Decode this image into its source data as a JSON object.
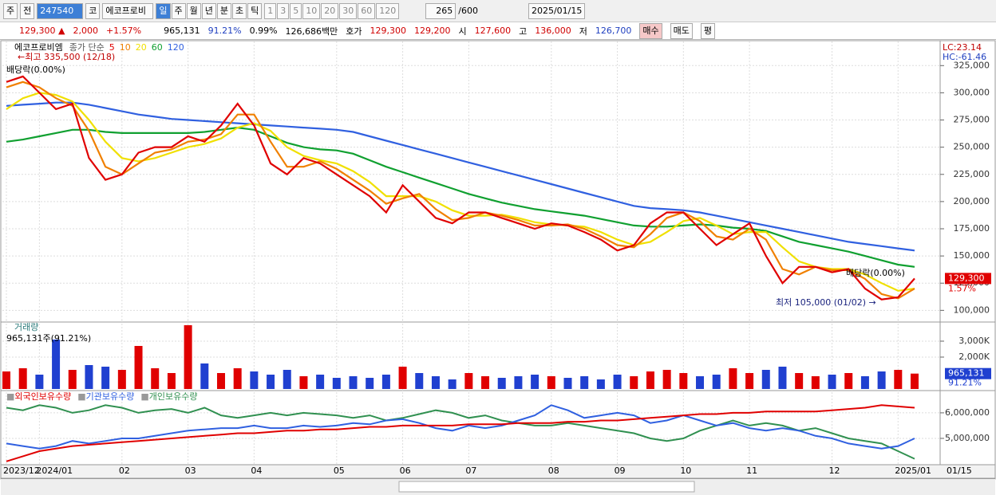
{
  "toolbar": {
    "type_select": "주",
    "prev": "전",
    "code": "247540",
    "market": "코",
    "name": "에코프로비",
    "periods": [
      "일",
      "주",
      "월",
      "년",
      "분",
      "초",
      "틱"
    ],
    "intervals": [
      "1",
      "3",
      "5",
      "10",
      "20",
      "30",
      "60",
      "120"
    ],
    "count": "265",
    "max": "/600",
    "date": "2025/01/15"
  },
  "quote": {
    "price": "129,300 ▲",
    "change": "2,000",
    "rate": "+1.57%",
    "volume": "965,131",
    "volume_ratio": "91.21%",
    "turnover": "0.99%",
    "amount": "126,686백만",
    "ask_label": "호가",
    "ask": "129,300",
    "bid": "129,200",
    "open_label": "시",
    "open": "127,600",
    "high_label": "고",
    "high": "136,000",
    "low_label": "저",
    "low": "126,700",
    "buy": "매수",
    "sell": "매도",
    "avg": "평"
  },
  "chart_data": [
    {
      "type": "line",
      "legend_title": "에코프로비엠",
      "legend_label": "종가 단순",
      "categories": [
        "2023/12",
        null,
        "2024/01",
        null,
        null,
        null,
        null,
        "02",
        null,
        null,
        null,
        "03",
        null,
        null,
        null,
        "04",
        null,
        null,
        null,
        null,
        "05",
        null,
        null,
        null,
        "06",
        null,
        null,
        null,
        "07",
        null,
        null,
        null,
        null,
        "08",
        null,
        null,
        null,
        "09",
        null,
        null,
        null,
        "10",
        null,
        null,
        null,
        "11",
        null,
        null,
        null,
        null,
        "12",
        null,
        null,
        null,
        "2025/01",
        null
      ],
      "current_label": "01/15",
      "series": [
        {
          "name": "5",
          "color": "#e00000",
          "values": [
            310000,
            315000,
            300000,
            285000,
            290000,
            240000,
            220000,
            225000,
            245000,
            250000,
            250000,
            260000,
            255000,
            270000,
            290000,
            270000,
            235000,
            225000,
            240000,
            235000,
            225000,
            215000,
            205000,
            190000,
            215000,
            200000,
            185000,
            180000,
            190000,
            190000,
            185000,
            180000,
            175000,
            180000,
            178000,
            172000,
            165000,
            155000,
            160000,
            180000,
            190000,
            190000,
            175000,
            160000,
            170000,
            180000,
            150000,
            125000,
            140000,
            140000,
            135000,
            138000,
            120000,
            110000,
            112000,
            129300
          ]
        },
        {
          "name": "10",
          "color": "#f08000",
          "values": [
            305000,
            310000,
            305000,
            295000,
            288000,
            265000,
            232000,
            225000,
            235000,
            245000,
            248000,
            255000,
            257000,
            262000,
            280000,
            280000,
            255000,
            232000,
            232000,
            237000,
            230000,
            220000,
            210000,
            198000,
            203000,
            207000,
            193000,
            183000,
            185000,
            190000,
            187000,
            183000,
            178000,
            178000,
            179000,
            175000,
            168000,
            160000,
            158000,
            170000,
            185000,
            190000,
            182000,
            168000,
            165000,
            175000,
            165000,
            138000,
            133000,
            140000,
            137000,
            137000,
            129000,
            115000,
            111000,
            120000
          ]
        },
        {
          "name": "20",
          "color": "#f0e000",
          "values": [
            285000,
            295000,
            300000,
            298000,
            292000,
            275000,
            255000,
            240000,
            237000,
            240000,
            245000,
            250000,
            253000,
            258000,
            268000,
            272000,
            265000,
            250000,
            242000,
            238000,
            235000,
            228000,
            218000,
            205000,
            205000,
            205000,
            200000,
            192000,
            187000,
            187000,
            188000,
            185000,
            181000,
            179000,
            178000,
            177000,
            172000,
            165000,
            160000,
            163000,
            172000,
            182000,
            185000,
            178000,
            170000,
            172000,
            172000,
            158000,
            145000,
            140000,
            138000,
            138000,
            133000,
            125000,
            118000,
            120000
          ]
        },
        {
          "name": "60",
          "color": "#10a030",
          "values": [
            255000,
            257000,
            260000,
            263000,
            266000,
            266000,
            264000,
            263000,
            263000,
            263000,
            263000,
            263000,
            264000,
            266000,
            268000,
            266000,
            260000,
            254000,
            250000,
            248000,
            247000,
            244000,
            238000,
            232000,
            227000,
            222000,
            217000,
            212000,
            207000,
            203000,
            199000,
            196000,
            193000,
            191000,
            189000,
            187000,
            184000,
            181000,
            178000,
            177000,
            177000,
            178000,
            179000,
            178000,
            176000,
            175000,
            173000,
            168000,
            163000,
            160000,
            157000,
            154000,
            150000,
            146000,
            142000,
            140000
          ]
        },
        {
          "name": "120",
          "color": "#3060e0",
          "values": [
            288000,
            289000,
            290000,
            291000,
            291000,
            289000,
            286000,
            283000,
            280000,
            278000,
            276000,
            275000,
            274000,
            273000,
            272000,
            271000,
            270000,
            269000,
            268000,
            267000,
            266000,
            264000,
            260000,
            256000,
            252000,
            248000,
            244000,
            240000,
            236000,
            232000,
            228000,
            224000,
            220000,
            216000,
            212000,
            208000,
            204000,
            200000,
            196000,
            194000,
            193000,
            192000,
            190000,
            187000,
            184000,
            181000,
            178000,
            175000,
            172000,
            169000,
            166000,
            163000,
            161000,
            159000,
            157000,
            155000
          ]
        }
      ],
      "ylim": [
        90000,
        345000
      ],
      "yticks": [
        {
          "value": 100000,
          "label": "100,000"
        },
        {
          "value": 125000,
          "label": "125,000"
        },
        {
          "value": 150000,
          "label": "150,000"
        },
        {
          "value": 175000,
          "label": "175,000"
        },
        {
          "value": 200000,
          "label": "200,000"
        },
        {
          "value": 225000,
          "label": "225,000"
        },
        {
          "value": 250000,
          "label": "250,000"
        },
        {
          "value": 275000,
          "label": "275,000"
        },
        {
          "value": 300000,
          "label": "300,000"
        },
        {
          "value": 325000,
          "label": "325,000"
        }
      ],
      "grid": true,
      "annotations": [
        "←최고 335,500 (12/18)",
        "배당락(0.00%)",
        "배당락(0.00%)",
        "최저 105,000 (01/02) →"
      ],
      "lc": "LC:23.14",
      "hc": "HC:-61.46",
      "price_tag": "129,300",
      "rate_tag": "1.57%"
    },
    {
      "type": "bar",
      "title": "거래량",
      "subtitle": "965,131주(91.21%)",
      "up_color": "#e00000",
      "down_color": "#2040d0",
      "values": [
        1100000,
        1300000,
        900000,
        3100000,
        1200000,
        1500000,
        1400000,
        1200000,
        2700000,
        1300000,
        1000000,
        4000000,
        1600000,
        1000000,
        1300000,
        1100000,
        900000,
        1200000,
        800000,
        900000,
        700000,
        800000,
        700000,
        900000,
        1400000,
        1000000,
        800000,
        600000,
        1000000,
        800000,
        700000,
        800000,
        900000,
        800000,
        700000,
        800000,
        600000,
        900000,
        800000,
        1100000,
        1200000,
        1000000,
        800000,
        900000,
        1300000,
        1000000,
        1200000,
        1400000,
        1000000,
        800000,
        900000,
        1000000,
        800000,
        1100000,
        1200000,
        965131
      ],
      "ylim": [
        0,
        4150000
      ],
      "yticks": [
        {
          "value": 2000000,
          "label": "2,000K"
        },
        {
          "value": 3000000,
          "label": "3,000K"
        }
      ],
      "value_tag": "965,131",
      "rate_tag": "91.21%"
    },
    {
      "type": "line",
      "series": [
        {
          "name": "외국인보유수량",
          "color": "#e00000",
          "values": [
            4100000,
            4300000,
            4500000,
            4600000,
            4700000,
            4750000,
            4800000,
            4850000,
            4900000,
            4950000,
            5000000,
            5050000,
            5100000,
            5150000,
            5200000,
            5200000,
            5250000,
            5300000,
            5300000,
            5350000,
            5350000,
            5400000,
            5450000,
            5450000,
            5500000,
            5500000,
            5500000,
            5500000,
            5550000,
            5550000,
            5550000,
            5600000,
            5600000,
            5600000,
            5650000,
            5650000,
            5700000,
            5700000,
            5750000,
            5800000,
            5850000,
            5900000,
            5950000,
            5950000,
            6000000,
            6000000,
            6050000,
            6050000,
            6050000,
            6050000,
            6100000,
            6150000,
            6200000,
            6300000,
            6250000,
            6200000
          ]
        },
        {
          "name": "기관보유수량",
          "color": "#3060e0",
          "values": [
            4800000,
            4700000,
            4600000,
            4700000,
            4900000,
            4800000,
            4900000,
            5000000,
            5000000,
            5100000,
            5200000,
            5300000,
            5350000,
            5400000,
            5400000,
            5500000,
            5400000,
            5400000,
            5500000,
            5450000,
            5500000,
            5600000,
            5550000,
            5700000,
            5750000,
            5600000,
            5400000,
            5300000,
            5500000,
            5400000,
            5500000,
            5700000,
            5900000,
            6300000,
            6100000,
            5800000,
            5900000,
            6000000,
            5900000,
            5600000,
            5700000,
            5900000,
            5700000,
            5500000,
            5600000,
            5400000,
            5300000,
            5400000,
            5300000,
            5100000,
            5000000,
            4800000,
            4700000,
            4600000,
            4700000,
            5000000
          ]
        },
        {
          "name": "개인보유수량",
          "color": "#309050",
          "values": [
            6200000,
            6100000,
            6300000,
            6200000,
            6000000,
            6100000,
            6300000,
            6200000,
            6000000,
            6100000,
            6150000,
            6000000,
            6200000,
            5900000,
            5800000,
            5900000,
            6000000,
            5900000,
            6000000,
            5950000,
            5900000,
            5800000,
            5900000,
            5700000,
            5800000,
            5950000,
            6100000,
            6000000,
            5800000,
            5900000,
            5700000,
            5600000,
            5500000,
            5500000,
            5600000,
            5500000,
            5400000,
            5300000,
            5200000,
            5000000,
            4900000,
            5000000,
            5300000,
            5500000,
            5700000,
            5500000,
            5600000,
            5500000,
            5300000,
            5400000,
            5200000,
            5000000,
            4900000,
            4800000,
            4500000,
            4200000
          ]
        }
      ],
      "ylim": [
        4000000,
        6840000
      ],
      "yticks": [
        {
          "value": 5000000,
          "label": "5,000,000"
        },
        {
          "value": 6000000,
          "label": "6,000,000"
        }
      ]
    }
  ]
}
